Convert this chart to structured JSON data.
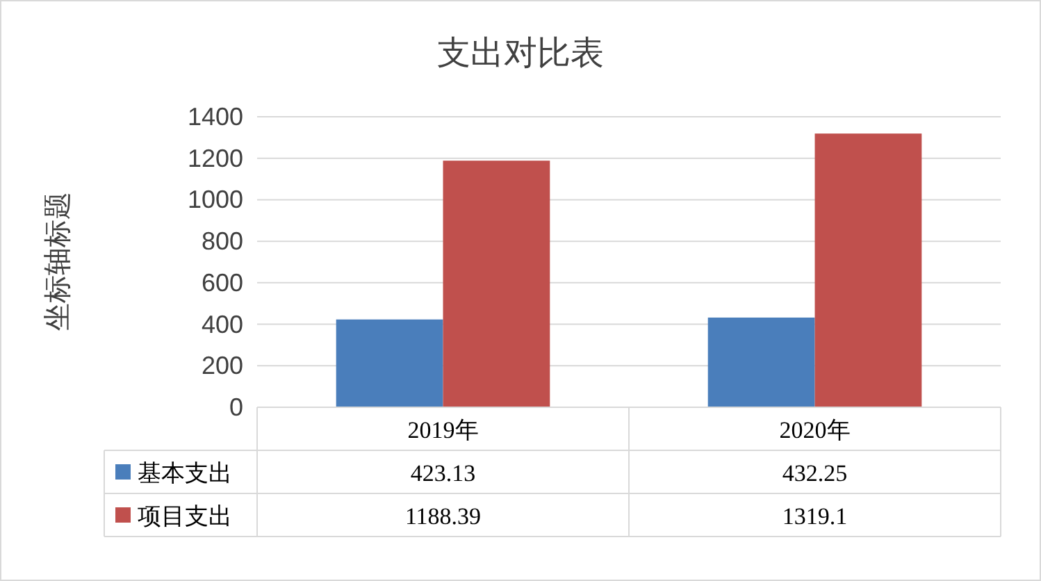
{
  "chart_data": {
    "type": "bar",
    "title": "支出对比表",
    "ylabel": "坐标轴标题",
    "categories": [
      "2019年",
      "2020年"
    ],
    "series": [
      {
        "name": "基本支出",
        "color": "#4a7ebb",
        "values": [
          423.13,
          432.25
        ]
      },
      {
        "name": "项目支出",
        "color": "#c0504d",
        "values": [
          1188.39,
          1319.1
        ]
      }
    ],
    "ylim": [
      0,
      1400
    ],
    "yticks": [
      0,
      200,
      400,
      600,
      800,
      1000,
      1200,
      1400
    ],
    "grid": "y",
    "legend": "bottom",
    "data_labels": true
  }
}
